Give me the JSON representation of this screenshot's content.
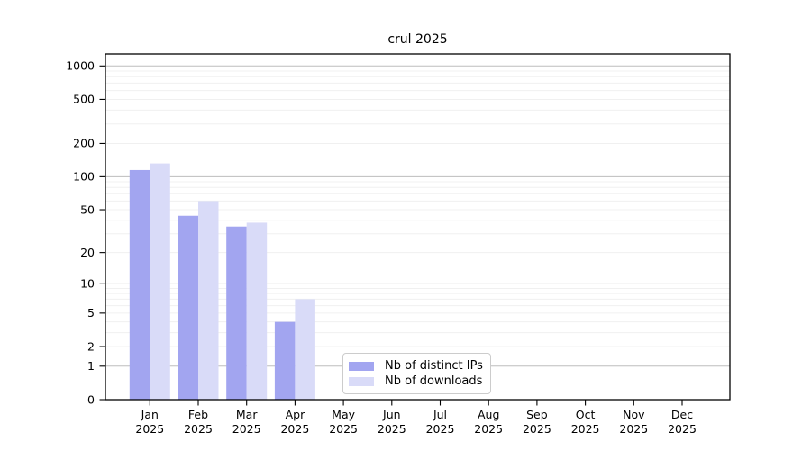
{
  "chart_data": {
    "type": "bar",
    "title": "crul 2025",
    "x_categories": [
      "Jan 2025",
      "Feb 2025",
      "Mar 2025",
      "Apr 2025",
      "May 2025",
      "Jun 2025",
      "Jul 2025",
      "Aug 2025",
      "Sep 2025",
      "Oct 2025",
      "Nov 2025",
      "Dec 2025"
    ],
    "series": [
      {
        "name": "Nb of distinct IPs",
        "color": "#a2a5f0",
        "values": [
          115,
          44,
          35,
          4,
          0,
          0,
          0,
          0,
          0,
          0,
          0,
          0
        ]
      },
      {
        "name": "Nb of downloads",
        "color": "#d9dbf8",
        "values": [
          132,
          60,
          38,
          7,
          0,
          0,
          0,
          0,
          0,
          0,
          0,
          0
        ]
      }
    ],
    "y_scale": "log10(1+v)",
    "y_ticks": [
      0,
      1,
      2,
      5,
      10,
      20,
      50,
      100,
      200,
      500,
      1000
    ],
    "ylim": [
      0,
      1000
    ],
    "grid": {
      "major_lines": [
        1,
        10,
        100,
        1000
      ],
      "minor_lines_per_decade": [
        2,
        3,
        4,
        5,
        6,
        7,
        8,
        9
      ]
    },
    "legend_position": "inside bottom-center-left"
  },
  "colors": {
    "grid_major": "#bdbdbd",
    "grid_minor": "#f0f0f0",
    "axis": "#000000",
    "text": "#000000",
    "background": "#ffffff"
  }
}
